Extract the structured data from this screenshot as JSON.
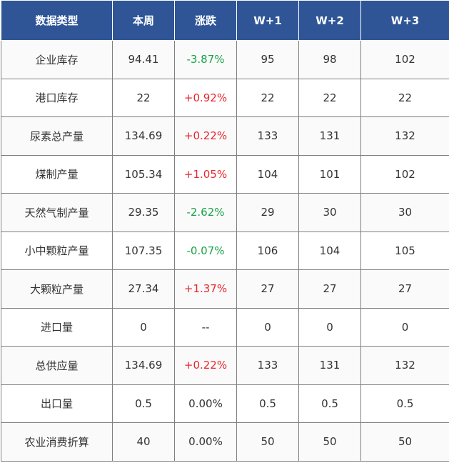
{
  "colors": {
    "header_bg": "#2f5597",
    "header_text": "#ffffff",
    "up": "#e8262d",
    "down": "#19a24a",
    "text": "#333333",
    "border": "#7f7f7f"
  },
  "table": {
    "headers": [
      "数据类型",
      "本周",
      "涨跌",
      "W+1",
      "W+2",
      "W+3"
    ],
    "rows": [
      {
        "type": "企业库存",
        "this_week": "94.41",
        "change": "-3.87%",
        "dir": "down",
        "w1": "95",
        "w2": "98",
        "w3": "102"
      },
      {
        "type": "港口库存",
        "this_week": "22",
        "change": "+0.92%",
        "dir": "up",
        "w1": "22",
        "w2": "22",
        "w3": "22"
      },
      {
        "type": "尿素总产量",
        "this_week": "134.69",
        "change": "+0.22%",
        "dir": "up",
        "w1": "133",
        "w2": "131",
        "w3": "132"
      },
      {
        "type": "煤制产量",
        "this_week": "105.34",
        "change": "+1.05%",
        "dir": "up",
        "w1": "104",
        "w2": "101",
        "w3": "102"
      },
      {
        "type": "天然气制产量",
        "this_week": "29.35",
        "change": "-2.62%",
        "dir": "down",
        "w1": "29",
        "w2": "30",
        "w3": "30"
      },
      {
        "type": "小中颗粒产量",
        "this_week": "107.35",
        "change": "-0.07%",
        "dir": "down",
        "w1": "106",
        "w2": "104",
        "w3": "105"
      },
      {
        "type": "大颗粒产量",
        "this_week": "27.34",
        "change": "+1.37%",
        "dir": "up",
        "w1": "27",
        "w2": "27",
        "w3": "27"
      },
      {
        "type": "进口量",
        "this_week": "0",
        "change": "--",
        "dir": "flat",
        "w1": "0",
        "w2": "0",
        "w3": "0"
      },
      {
        "type": "总供应量",
        "this_week": "134.69",
        "change": "+0.22%",
        "dir": "up",
        "w1": "133",
        "w2": "131",
        "w3": "132"
      },
      {
        "type": "出口量",
        "this_week": "0.5",
        "change": "0.00%",
        "dir": "flat",
        "w1": "0.5",
        "w2": "0.5",
        "w3": "0.5"
      },
      {
        "type": "农业消费折算",
        "this_week": "40",
        "change": "0.00%",
        "dir": "flat",
        "w1": "50",
        "w2": "50",
        "w3": "50"
      }
    ]
  }
}
